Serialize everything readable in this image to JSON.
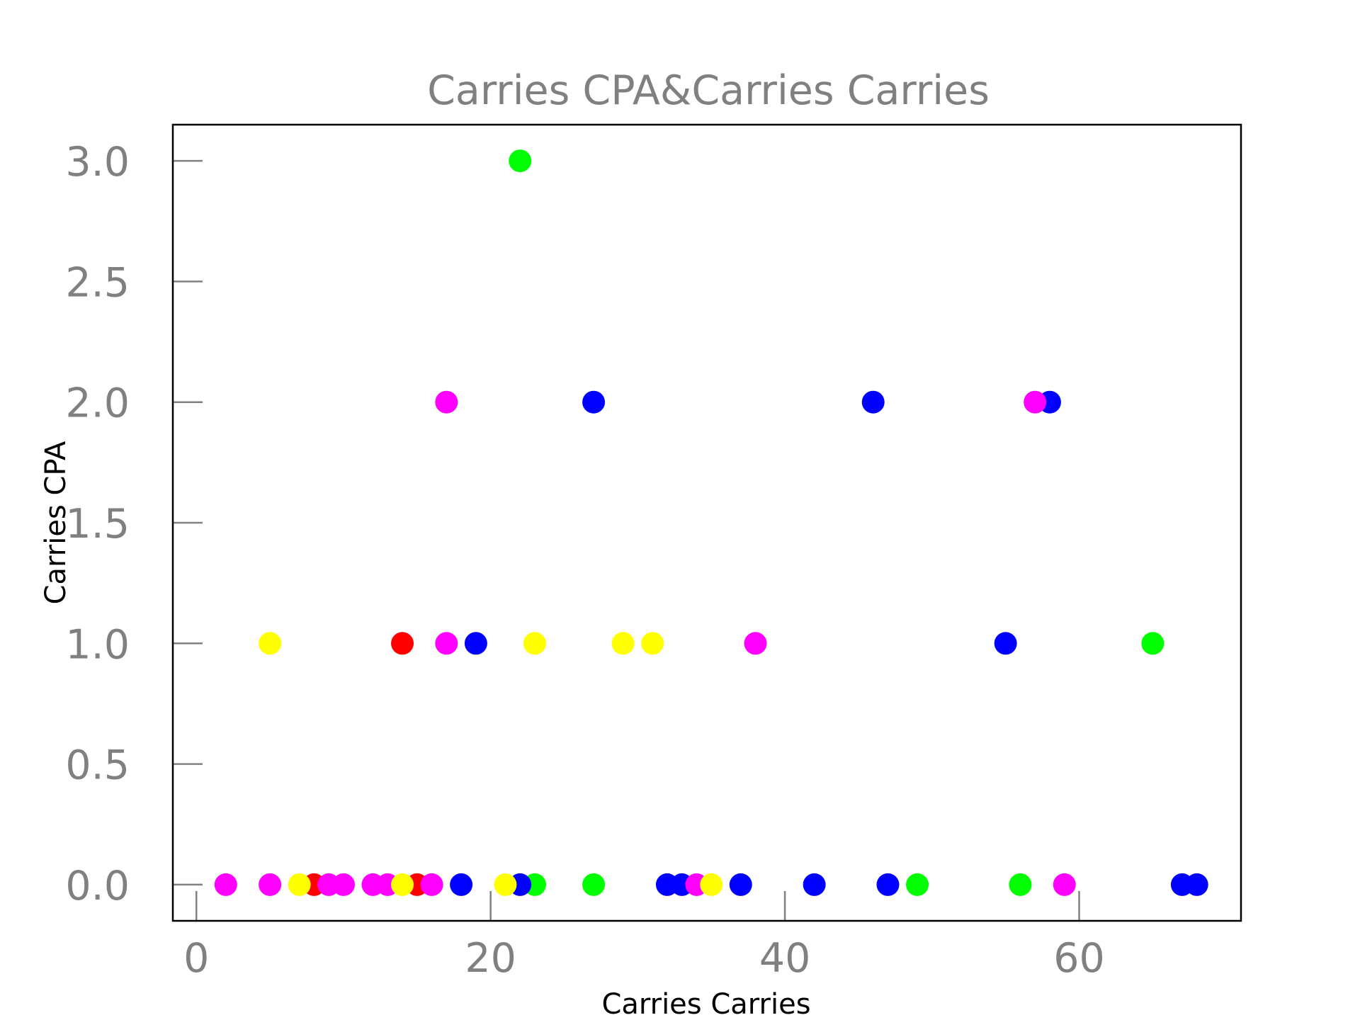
{
  "chart_data": {
    "type": "scatter",
    "title": "Carries CPA&Carries Carries",
    "xlabel": "Carries Carries",
    "ylabel": "Carries CPA",
    "xlim": [
      -1.6,
      71
    ],
    "ylim": [
      -0.15,
      3.15
    ],
    "xticks": [
      0,
      20,
      40,
      60
    ],
    "yticks": [
      0.0,
      0.5,
      1.0,
      1.5,
      2.0,
      2.5,
      3.0
    ],
    "xtick_labels": [
      "0",
      "20",
      "40",
      "60"
    ],
    "ytick_labels": [
      "0.0",
      "0.5",
      "1.0",
      "1.5",
      "2.0",
      "2.5",
      "3.0"
    ],
    "grid": false,
    "legend": false,
    "series": [
      {
        "color": "#ff0000",
        "points": [
          [
            8,
            0
          ],
          [
            14,
            1
          ],
          [
            15,
            0
          ]
        ]
      },
      {
        "color": "#00ff00",
        "points": [
          [
            22,
            3
          ],
          [
            23,
            0
          ],
          [
            27,
            0
          ],
          [
            49,
            0
          ],
          [
            56,
            0
          ],
          [
            65,
            1
          ]
        ]
      },
      {
        "color": "#0000ff",
        "points": [
          [
            18,
            0
          ],
          [
            19,
            1
          ],
          [
            22,
            0
          ],
          [
            27,
            2
          ],
          [
            32,
            0
          ],
          [
            33,
            0
          ],
          [
            37,
            0
          ],
          [
            42,
            0
          ],
          [
            46,
            2
          ],
          [
            47,
            0
          ],
          [
            55,
            1
          ],
          [
            58,
            2
          ],
          [
            67,
            0
          ],
          [
            68,
            0
          ]
        ]
      },
      {
        "color": "#ff00ff",
        "points": [
          [
            2,
            0
          ],
          [
            5,
            0
          ],
          [
            9,
            0
          ],
          [
            10,
            0
          ],
          [
            12,
            0
          ],
          [
            13,
            0
          ],
          [
            16,
            0
          ],
          [
            17,
            2
          ],
          [
            17,
            1
          ],
          [
            34,
            0
          ],
          [
            38,
            1
          ],
          [
            57,
            2
          ],
          [
            59,
            0
          ]
        ]
      },
      {
        "color": "#ffff00",
        "points": [
          [
            5,
            1
          ],
          [
            7,
            0
          ],
          [
            14,
            0
          ],
          [
            21,
            0
          ],
          [
            23,
            1
          ],
          [
            29,
            1
          ],
          [
            31,
            1
          ],
          [
            35,
            0
          ]
        ]
      }
    ]
  }
}
